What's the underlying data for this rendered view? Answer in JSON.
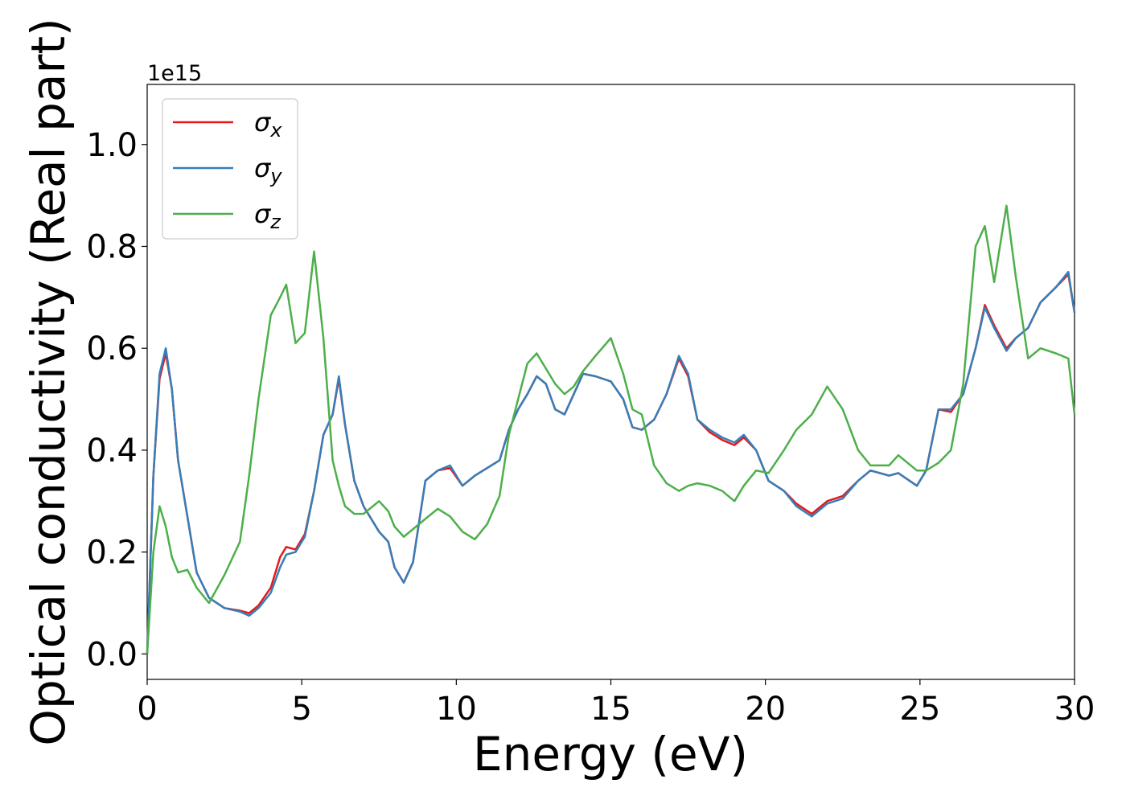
{
  "chart_data": {
    "type": "line",
    "x_label": "Energy (eV)",
    "y_label": "Optical conductivity (Real part)",
    "offset_text": "1e15",
    "x": [
      0,
      0.2,
      0.4,
      0.6,
      0.8,
      1.0,
      1.3,
      1.6,
      2.0,
      2.5,
      3.0,
      3.3,
      3.6,
      4.0,
      4.3,
      4.5,
      4.8,
      5.1,
      5.4,
      5.7,
      6.0,
      6.2,
      6.4,
      6.7,
      7.0,
      7.5,
      7.8,
      8.0,
      8.3,
      8.6,
      9.0,
      9.4,
      9.8,
      10.2,
      10.6,
      11.0,
      11.4,
      11.7,
      12.0,
      12.3,
      12.6,
      12.9,
      13.2,
      13.5,
      13.8,
      14.1,
      14.5,
      15.0,
      15.4,
      15.7,
      16.0,
      16.4,
      16.8,
      17.2,
      17.5,
      17.8,
      18.2,
      18.6,
      19.0,
      19.3,
      19.7,
      20.1,
      20.6,
      21.0,
      21.5,
      22.0,
      22.5,
      23.0,
      23.4,
      24.0,
      24.3,
      24.9,
      25.2,
      25.6,
      26.0,
      26.4,
      26.8,
      27.1,
      27.4,
      27.8,
      28.1,
      28.5,
      28.9,
      29.4,
      29.8,
      30.0
    ],
    "series": [
      {
        "name": "σx",
        "color": "#e41a1c",
        "values": [
          0,
          0.35,
          0.54,
          0.59,
          0.52,
          0.38,
          0.27,
          0.16,
          0.11,
          0.09,
          0.085,
          0.08,
          0.095,
          0.13,
          0.19,
          0.21,
          0.205,
          0.235,
          0.32,
          0.43,
          0.47,
          0.54,
          0.45,
          0.34,
          0.29,
          0.24,
          0.22,
          0.17,
          0.14,
          0.18,
          0.34,
          0.36,
          0.365,
          0.33,
          0.35,
          0.365,
          0.38,
          0.44,
          0.48,
          0.51,
          0.545,
          0.53,
          0.48,
          0.47,
          0.51,
          0.55,
          0.545,
          0.535,
          0.5,
          0.445,
          0.44,
          0.46,
          0.51,
          0.58,
          0.545,
          0.46,
          0.435,
          0.42,
          0.41,
          0.425,
          0.4,
          0.34,
          0.32,
          0.295,
          0.275,
          0.3,
          0.31,
          0.34,
          0.36,
          0.35,
          0.355,
          0.33,
          0.36,
          0.48,
          0.475,
          0.51,
          0.6,
          0.685,
          0.645,
          0.6,
          0.62,
          0.64,
          0.69,
          0.72,
          0.745,
          0.67
        ]
      },
      {
        "name": "σy",
        "color": "#377eb8",
        "values": [
          0,
          0.35,
          0.55,
          0.6,
          0.52,
          0.38,
          0.27,
          0.16,
          0.11,
          0.09,
          0.083,
          0.075,
          0.09,
          0.12,
          0.17,
          0.195,
          0.2,
          0.23,
          0.32,
          0.43,
          0.47,
          0.545,
          0.45,
          0.34,
          0.29,
          0.24,
          0.22,
          0.17,
          0.14,
          0.18,
          0.34,
          0.36,
          0.37,
          0.33,
          0.35,
          0.365,
          0.38,
          0.44,
          0.48,
          0.51,
          0.545,
          0.53,
          0.48,
          0.47,
          0.51,
          0.55,
          0.545,
          0.535,
          0.5,
          0.445,
          0.44,
          0.46,
          0.51,
          0.585,
          0.55,
          0.46,
          0.44,
          0.425,
          0.415,
          0.43,
          0.4,
          0.34,
          0.32,
          0.29,
          0.27,
          0.295,
          0.305,
          0.34,
          0.36,
          0.35,
          0.355,
          0.33,
          0.36,
          0.48,
          0.48,
          0.51,
          0.6,
          0.68,
          0.64,
          0.595,
          0.62,
          0.64,
          0.69,
          0.72,
          0.75,
          0.67
        ]
      },
      {
        "name": "σz",
        "color": "#4daf4a",
        "values": [
          0,
          0.2,
          0.29,
          0.25,
          0.19,
          0.16,
          0.165,
          0.13,
          0.1,
          0.155,
          0.22,
          0.35,
          0.5,
          0.665,
          0.7,
          0.725,
          0.61,
          0.63,
          0.79,
          0.62,
          0.38,
          0.33,
          0.29,
          0.275,
          0.275,
          0.3,
          0.28,
          0.25,
          0.23,
          0.245,
          0.265,
          0.285,
          0.27,
          0.24,
          0.225,
          0.255,
          0.31,
          0.43,
          0.5,
          0.57,
          0.59,
          0.56,
          0.53,
          0.51,
          0.525,
          0.555,
          0.585,
          0.62,
          0.55,
          0.48,
          0.47,
          0.37,
          0.335,
          0.32,
          0.33,
          0.335,
          0.33,
          0.32,
          0.3,
          0.33,
          0.36,
          0.355,
          0.4,
          0.44,
          0.47,
          0.525,
          0.48,
          0.4,
          0.37,
          0.37,
          0.39,
          0.36,
          0.36,
          0.375,
          0.4,
          0.53,
          0.8,
          0.84,
          0.73,
          0.88,
          0.74,
          0.58,
          0.6,
          0.59,
          0.58,
          0.47
        ]
      }
    ],
    "xlim": [
      0,
      30
    ],
    "xticks": [
      0,
      5,
      10,
      15,
      20,
      25,
      30
    ],
    "ylim": [
      -0.05,
      1.118
    ],
    "yticks": [
      {
        "value": 0,
        "label": "0.0"
      },
      0.2,
      0.4,
      0.6,
      0.8,
      {
        "value": 1,
        "label": "1.0"
      }
    ],
    "grid": false,
    "legend": "upper left"
  }
}
